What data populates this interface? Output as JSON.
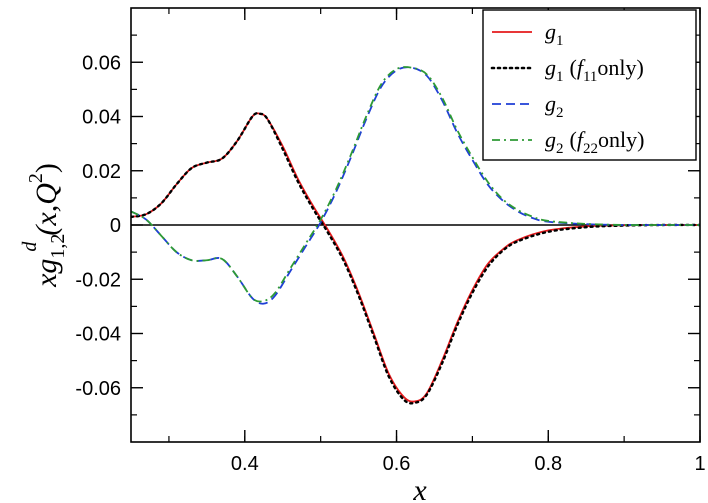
{
  "chart_data": {
    "type": "line",
    "xlabel": "x",
    "ylabel": {
      "base": "xg",
      "sub": "1,2",
      "sup": "d",
      "args": "(x,Q",
      "args_sup": "2",
      "args_close": ")"
    },
    "xlim": [
      0.25,
      1.0
    ],
    "ylim": [
      -0.08,
      0.08
    ],
    "x_ticks": [
      0.4,
      0.6,
      0.8,
      1.0
    ],
    "x_tick_labels": [
      "0.4",
      "0.6",
      "0.8",
      "1"
    ],
    "y_ticks": [
      -0.06,
      -0.04,
      -0.02,
      0,
      0.02,
      0.04,
      0.06
    ],
    "y_tick_labels": [
      "-0.06",
      "-0.04",
      "-0.02",
      "0",
      "0.02",
      "0.04",
      "0.06"
    ],
    "grid": false,
    "legend_position": "top-right",
    "zero_line": true,
    "series": [
      {
        "name": "g1",
        "legend": {
          "main": "g",
          "sub": "1",
          "extra": ""
        },
        "color": "#e41a1c",
        "dash": "solid",
        "x": [
          0.25,
          0.27,
          0.29,
          0.31,
          0.33,
          0.35,
          0.37,
          0.39,
          0.41,
          0.42,
          0.43,
          0.45,
          0.47,
          0.49,
          0.51,
          0.53,
          0.55,
          0.57,
          0.59,
          0.61,
          0.625,
          0.64,
          0.66,
          0.68,
          0.7,
          0.72,
          0.74,
          0.76,
          0.8,
          0.85,
          0.9,
          0.95,
          1.0
        ],
        "values": [
          0.003,
          0.004,
          0.008,
          0.015,
          0.021,
          0.023,
          0.0245,
          0.031,
          0.04,
          0.041,
          0.039,
          0.029,
          0.017,
          0.007,
          -0.002,
          -0.012,
          -0.025,
          -0.04,
          -0.055,
          -0.0635,
          -0.065,
          -0.062,
          -0.05,
          -0.036,
          -0.024,
          -0.0145,
          -0.009,
          -0.0055,
          -0.002,
          -0.0005,
          -0.0001,
          0,
          0
        ]
      },
      {
        "name": "g1 (f11only)",
        "legend": {
          "main": "g",
          "sub": "1",
          "extra": "f11only"
        },
        "color": "#000000",
        "dash": "dotted",
        "x": [
          0.25,
          0.27,
          0.29,
          0.31,
          0.33,
          0.35,
          0.37,
          0.39,
          0.41,
          0.42,
          0.43,
          0.45,
          0.47,
          0.49,
          0.51,
          0.53,
          0.55,
          0.57,
          0.59,
          0.61,
          0.625,
          0.64,
          0.66,
          0.68,
          0.7,
          0.72,
          0.74,
          0.76,
          0.8,
          0.85,
          0.9,
          0.95,
          1.0
        ],
        "values": [
          0.003,
          0.004,
          0.008,
          0.015,
          0.021,
          0.023,
          0.0245,
          0.031,
          0.04,
          0.041,
          0.039,
          0.028,
          0.016,
          0.006,
          -0.003,
          -0.013,
          -0.026,
          -0.041,
          -0.056,
          -0.0645,
          -0.0655,
          -0.0625,
          -0.051,
          -0.037,
          -0.025,
          -0.0155,
          -0.0095,
          -0.006,
          -0.0025,
          -0.0008,
          -0.0002,
          0,
          0
        ]
      },
      {
        "name": "g2",
        "legend": {
          "main": "g",
          "sub": "2",
          "extra": ""
        },
        "color": "#1f3fd6",
        "dash": "dashed",
        "x": [
          0.25,
          0.27,
          0.29,
          0.31,
          0.33,
          0.35,
          0.37,
          0.39,
          0.41,
          0.425,
          0.44,
          0.46,
          0.48,
          0.5,
          0.52,
          0.54,
          0.56,
          0.58,
          0.6,
          0.62,
          0.64,
          0.66,
          0.68,
          0.7,
          0.72,
          0.74,
          0.76,
          0.78,
          0.8,
          0.85,
          0.9,
          0.95,
          1.0
        ],
        "values": [
          0.005,
          0.002,
          -0.004,
          -0.01,
          -0.013,
          -0.013,
          -0.0125,
          -0.019,
          -0.027,
          -0.029,
          -0.026,
          -0.017,
          -0.008,
          0.001,
          0.012,
          0.025,
          0.039,
          0.051,
          0.057,
          0.058,
          0.055,
          0.046,
          0.034,
          0.024,
          0.015,
          0.009,
          0.005,
          0.0025,
          0.0012,
          0.0003,
          0,
          0,
          0
        ]
      },
      {
        "name": "g2 (f22only)",
        "legend": {
          "main": "g",
          "sub": "2",
          "extra": "f22only"
        },
        "color": "#2e9a35",
        "dash": "dashdot",
        "x": [
          0.25,
          0.27,
          0.29,
          0.31,
          0.33,
          0.35,
          0.37,
          0.39,
          0.41,
          0.425,
          0.44,
          0.46,
          0.48,
          0.5,
          0.52,
          0.54,
          0.56,
          0.58,
          0.6,
          0.62,
          0.64,
          0.66,
          0.68,
          0.7,
          0.72,
          0.74,
          0.76,
          0.78,
          0.8,
          0.85,
          0.9,
          0.95,
          1.0
        ],
        "values": [
          0.005,
          0.002,
          -0.004,
          -0.01,
          -0.013,
          -0.013,
          -0.0125,
          -0.019,
          -0.027,
          -0.028,
          -0.025,
          -0.016,
          -0.007,
          0.002,
          0.013,
          0.026,
          0.04,
          0.052,
          0.0575,
          0.058,
          0.0555,
          0.047,
          0.035,
          0.025,
          0.016,
          0.0095,
          0.0055,
          0.003,
          0.0015,
          0.0004,
          0,
          0,
          0
        ]
      }
    ]
  }
}
